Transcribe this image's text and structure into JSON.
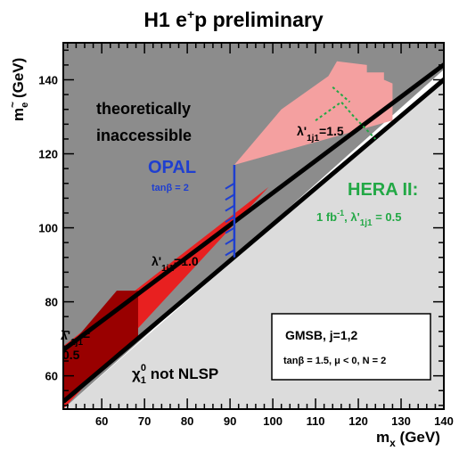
{
  "chart_data": {
    "type": "area",
    "title": "H1 e⁺p preliminary",
    "title_main": "H1 e",
    "title_sup": "+",
    "title_rest": "p preliminary",
    "xlabel": "m",
    "xlabel_sub": "x",
    "xlabel_unit": " (GeV)",
    "ylabel": "m",
    "ylabel_sub": "e",
    "ylabel_accent": "~",
    "ylabel_unit": " (GeV)",
    "xlim": [
      51,
      140
    ],
    "ylim": [
      51,
      150
    ],
    "xticks": [
      60,
      70,
      80,
      90,
      100,
      110,
      120,
      130,
      140
    ],
    "yticks": [
      60,
      80,
      100,
      120,
      140
    ],
    "regions": [
      {
        "name": "theoretically inaccessible",
        "color": "#8c8c8c",
        "polygon": [
          [
            51,
            51
          ],
          [
            51,
            150
          ],
          [
            147,
            150
          ]
        ]
      },
      {
        "name": "chi1_0 not NLSP",
        "color": "#dcdcdc",
        "polygon": [
          [
            51,
            51
          ],
          [
            140,
            51
          ],
          [
            140,
            141
          ]
        ]
      },
      {
        "name": "lambda 1.5 exclusion",
        "color": "#f4a0a0",
        "polygon": [
          [
            91,
            117
          ],
          [
            102,
            132
          ],
          [
            113,
            141
          ],
          [
            115,
            145
          ],
          [
            122,
            144
          ],
          [
            122,
            142
          ],
          [
            126,
            142
          ],
          [
            126,
            140
          ],
          [
            128,
            139
          ],
          [
            128,
            129
          ]
        ]
      },
      {
        "name": "lambda 1.0 exclusion",
        "color": "#e82020",
        "polygon": [
          [
            51,
            68
          ],
          [
            51,
            51
          ],
          [
            99,
            111
          ]
        ]
      },
      {
        "name": "lambda 0.5 exclusion",
        "color": "#990000",
        "polygon": [
          [
            51,
            66
          ],
          [
            63.5,
            83
          ],
          [
            68.5,
            83
          ],
          [
            68.5,
            70
          ],
          [
            51,
            53
          ]
        ]
      }
    ],
    "labels": {
      "theory_line1": "theoretically",
      "theory_line2": "inaccessible",
      "opal": "OPAL",
      "opal_tanb": "tanβ = 2",
      "hera": "HERA II:",
      "hera_lumi": "1 fb",
      "hera_lumi_sup": "-1",
      "hera_lambda": ", λ'",
      "hera_lambda_sub": "1j1",
      "hera_lambda_val": " = 0.5",
      "lam15": "λ'",
      "lam15_sub": "1j1",
      "lam15_val": "=1.5",
      "lam10": "λ'",
      "lam10_sub": "1j1",
      "lam10_val": "=1.0",
      "lam05": "λ'",
      "lam05_sub": "1j1",
      "lam05_eq": "=",
      "lam05_val": "0.5",
      "nlsp_chi": "χ",
      "nlsp_sub": "1",
      "nlsp_sup": "0",
      "nlsp_rest": " not NLSP",
      "gmsb": "GMSB, j=1,2",
      "gmsb_params": "tanβ = 1.5,  μ < 0,  N = 2"
    },
    "colors": {
      "opal": "#1f3fd0",
      "hera": "#22a845",
      "frame": "#000000"
    }
  }
}
